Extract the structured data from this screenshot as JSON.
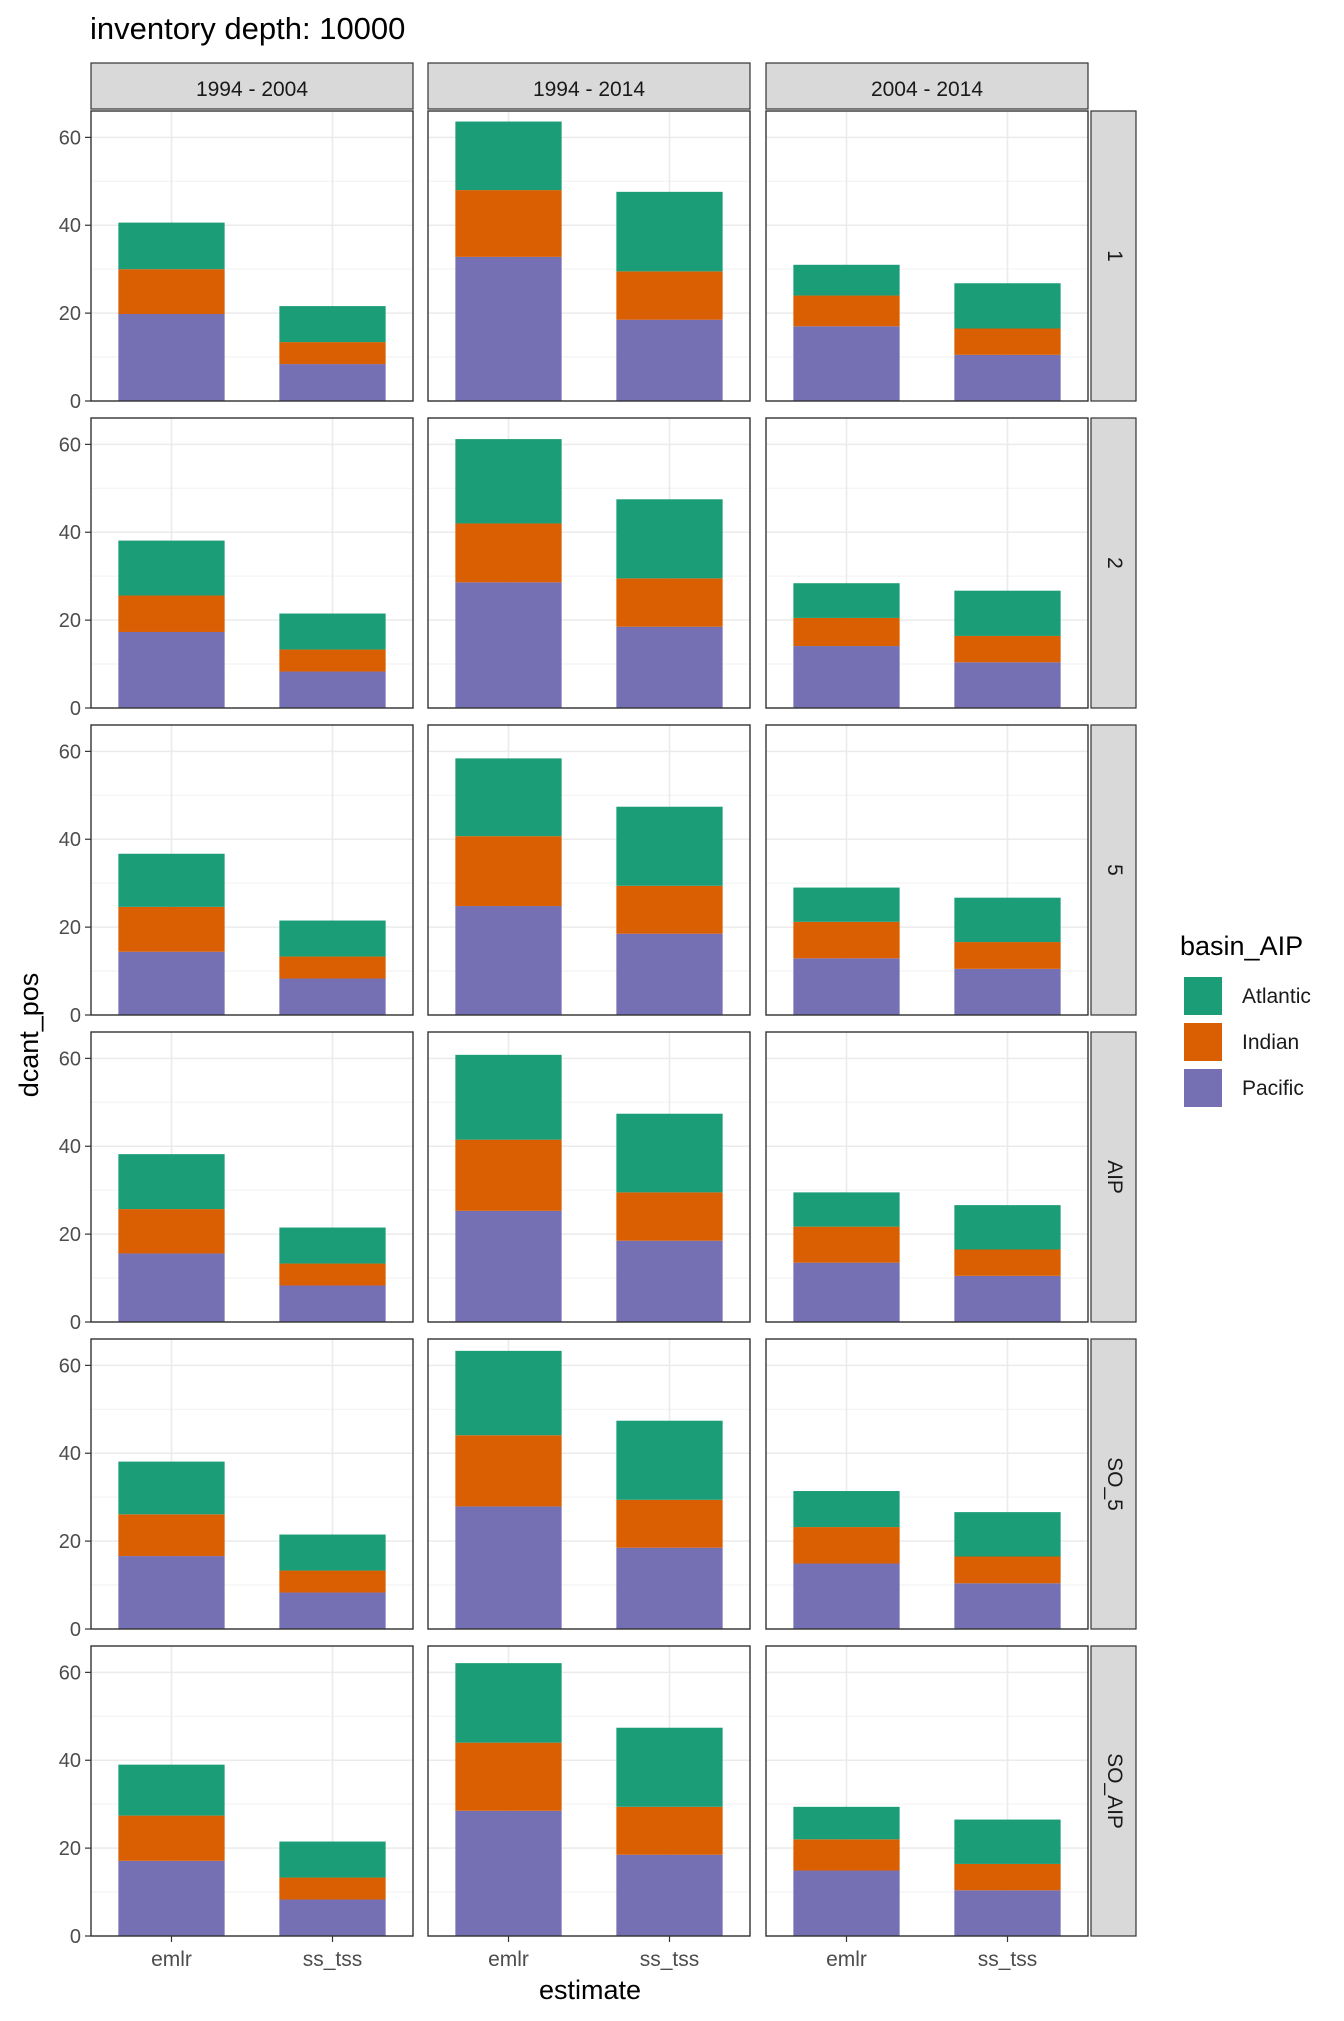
{
  "chart_data": {
    "type": "bar",
    "stacked": true,
    "title": "inventory depth: 10000",
    "xlabel": "estimate",
    "ylabel": "dcant_pos",
    "legend_title": "basin_AIP",
    "legend_placement": "right",
    "grid": true,
    "ylim": [
      0,
      66
    ],
    "yticks": [
      0,
      20,
      40,
      60
    ],
    "categories": [
      "emlr",
      "ss_tss"
    ],
    "col_facets": [
      "1994 - 2004",
      "1994 - 2014",
      "2004 - 2014"
    ],
    "row_facets": [
      "1",
      "2",
      "5",
      "AIP",
      "SO_5",
      "SO_AIP"
    ],
    "series_order": [
      "Pacific",
      "Indian",
      "Atlantic"
    ],
    "legend": [
      {
        "name": "Atlantic",
        "color": "#1b9e77"
      },
      {
        "name": "Indian",
        "color": "#d95f02"
      },
      {
        "name": "Pacific",
        "color": "#7570b3"
      }
    ],
    "panels": [
      {
        "row": "1",
        "col": "1994 - 2004",
        "emlr": {
          "Pacific": 19.8,
          "Indian": 10.2,
          "Atlantic": 10.6
        },
        "ss_tss": {
          "Pacific": 8.4,
          "Indian": 5.0,
          "Atlantic": 8.2
        }
      },
      {
        "row": "1",
        "col": "1994 - 2014",
        "emlr": {
          "Pacific": 32.8,
          "Indian": 15.2,
          "Atlantic": 15.6
        },
        "ss_tss": {
          "Pacific": 18.5,
          "Indian": 11.0,
          "Atlantic": 18.1
        }
      },
      {
        "row": "1",
        "col": "2004 - 2014",
        "emlr": {
          "Pacific": 17.0,
          "Indian": 7.0,
          "Atlantic": 7.0
        },
        "ss_tss": {
          "Pacific": 10.5,
          "Indian": 6.0,
          "Atlantic": 10.3
        }
      },
      {
        "row": "2",
        "col": "1994 - 2004",
        "emlr": {
          "Pacific": 17.3,
          "Indian": 8.3,
          "Atlantic": 12.5
        },
        "ss_tss": {
          "Pacific": 8.3,
          "Indian": 5.0,
          "Atlantic": 8.2
        }
      },
      {
        "row": "2",
        "col": "1994 - 2014",
        "emlr": {
          "Pacific": 28.6,
          "Indian": 13.4,
          "Atlantic": 19.2
        },
        "ss_tss": {
          "Pacific": 18.5,
          "Indian": 11.0,
          "Atlantic": 18.0
        }
      },
      {
        "row": "2",
        "col": "2004 - 2014",
        "emlr": {
          "Pacific": 14.1,
          "Indian": 6.4,
          "Atlantic": 7.9
        },
        "ss_tss": {
          "Pacific": 10.4,
          "Indian": 6.0,
          "Atlantic": 10.3
        }
      },
      {
        "row": "5",
        "col": "1994 - 2004",
        "emlr": {
          "Pacific": 14.4,
          "Indian": 10.2,
          "Atlantic": 12.1
        },
        "ss_tss": {
          "Pacific": 8.3,
          "Indian": 5.0,
          "Atlantic": 8.2
        }
      },
      {
        "row": "5",
        "col": "1994 - 2014",
        "emlr": {
          "Pacific": 24.8,
          "Indian": 15.9,
          "Atlantic": 17.7
        },
        "ss_tss": {
          "Pacific": 18.5,
          "Indian": 10.9,
          "Atlantic": 18.0
        }
      },
      {
        "row": "5",
        "col": "2004 - 2014",
        "emlr": {
          "Pacific": 12.9,
          "Indian": 8.3,
          "Atlantic": 7.8
        },
        "ss_tss": {
          "Pacific": 10.5,
          "Indian": 6.1,
          "Atlantic": 10.1
        }
      },
      {
        "row": "AIP",
        "col": "1994 - 2004",
        "emlr": {
          "Pacific": 15.6,
          "Indian": 10.1,
          "Atlantic": 12.5
        },
        "ss_tss": {
          "Pacific": 8.3,
          "Indian": 5.0,
          "Atlantic": 8.2
        }
      },
      {
        "row": "AIP",
        "col": "1994 - 2014",
        "emlr": {
          "Pacific": 25.3,
          "Indian": 16.2,
          "Atlantic": 19.3
        },
        "ss_tss": {
          "Pacific": 18.5,
          "Indian": 11.0,
          "Atlantic": 17.9
        }
      },
      {
        "row": "AIP",
        "col": "2004 - 2014",
        "emlr": {
          "Pacific": 13.5,
          "Indian": 8.2,
          "Atlantic": 7.8
        },
        "ss_tss": {
          "Pacific": 10.5,
          "Indian": 6.0,
          "Atlantic": 10.1
        }
      },
      {
        "row": "SO_5",
        "col": "1994 - 2004",
        "emlr": {
          "Pacific": 16.6,
          "Indian": 9.5,
          "Atlantic": 12.0
        },
        "ss_tss": {
          "Pacific": 8.3,
          "Indian": 5.0,
          "Atlantic": 8.2
        }
      },
      {
        "row": "SO_5",
        "col": "1994 - 2014",
        "emlr": {
          "Pacific": 27.9,
          "Indian": 16.2,
          "Atlantic": 19.2
        },
        "ss_tss": {
          "Pacific": 18.5,
          "Indian": 10.9,
          "Atlantic": 18.0
        }
      },
      {
        "row": "SO_5",
        "col": "2004 - 2014",
        "emlr": {
          "Pacific": 14.9,
          "Indian": 8.3,
          "Atlantic": 8.2
        },
        "ss_tss": {
          "Pacific": 10.4,
          "Indian": 6.1,
          "Atlantic": 10.1
        }
      },
      {
        "row": "SO_AIP",
        "col": "1994 - 2004",
        "emlr": {
          "Pacific": 17.1,
          "Indian": 10.3,
          "Atlantic": 11.6
        },
        "ss_tss": {
          "Pacific": 8.3,
          "Indian": 5.0,
          "Atlantic": 8.2
        }
      },
      {
        "row": "SO_AIP",
        "col": "1994 - 2014",
        "emlr": {
          "Pacific": 28.5,
          "Indian": 15.5,
          "Atlantic": 18.1
        },
        "ss_tss": {
          "Pacific": 18.5,
          "Indian": 10.9,
          "Atlantic": 18.0
        }
      },
      {
        "row": "SO_AIP",
        "col": "2004 - 2014",
        "emlr": {
          "Pacific": 14.9,
          "Indian": 7.1,
          "Atlantic": 7.4
        },
        "ss_tss": {
          "Pacific": 10.4,
          "Indian": 6.0,
          "Atlantic": 10.1
        }
      }
    ]
  }
}
